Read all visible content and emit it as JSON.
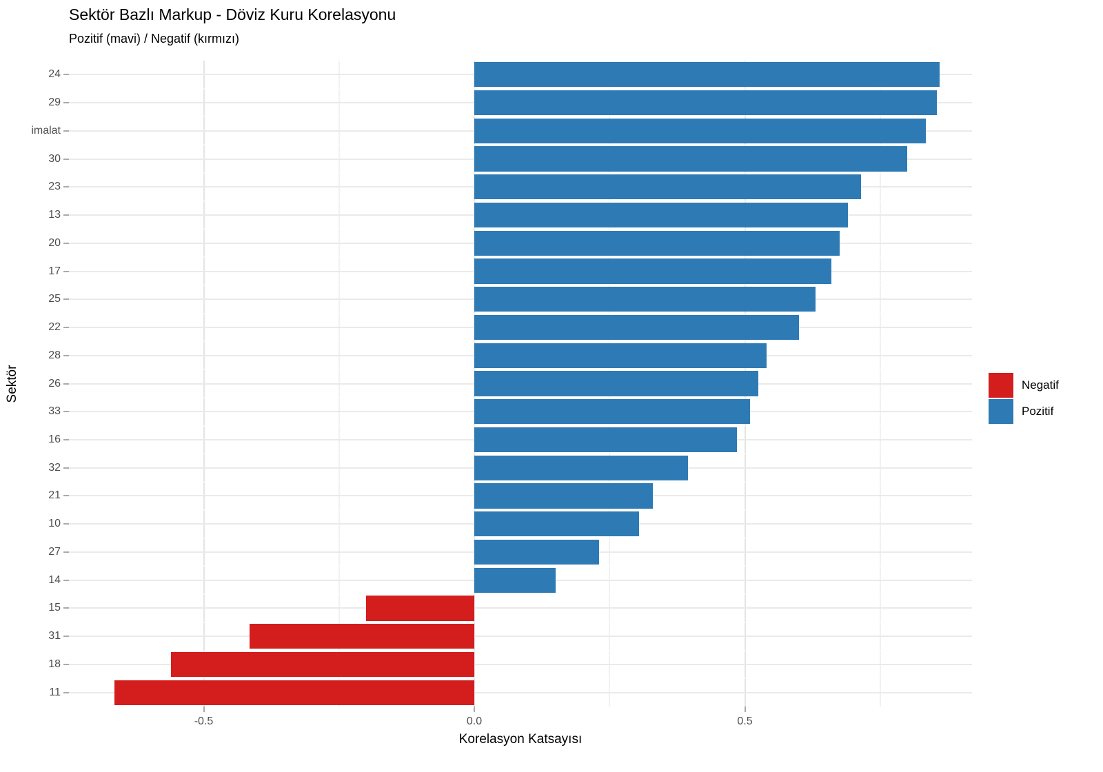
{
  "title": "Sektör Bazlı Markup - Döviz Kuru Korelasyonu",
  "subtitle": "Pozitif (mavi) / Negatif (kırmızı)",
  "chart_data": {
    "type": "bar",
    "orientation": "horizontal",
    "title": "Sektör Bazlı Markup - Döviz Kuru Korelasyonu",
    "subtitle": "Pozitif (mavi) / Negatif (kırmızı)",
    "xlabel": "Korelasyon Katsayısı",
    "ylabel": "Sektör",
    "categories": [
      "24",
      "29",
      "imalat",
      "30",
      "23",
      "13",
      "20",
      "17",
      "25",
      "22",
      "28",
      "26",
      "33",
      "16",
      "32",
      "21",
      "10",
      "27",
      "14",
      "15",
      "31",
      "18",
      "11"
    ],
    "values": [
      0.86,
      0.855,
      0.835,
      0.8,
      0.715,
      0.69,
      0.675,
      0.66,
      0.63,
      0.6,
      0.54,
      0.525,
      0.51,
      0.485,
      0.395,
      0.33,
      0.305,
      0.23,
      0.15,
      -0.2,
      -0.415,
      -0.56,
      -0.665
    ],
    "xlim": [
      -0.745,
      0.92
    ],
    "x_major_ticks": [
      -0.5,
      0.0,
      0.5
    ],
    "x_tick_labels": [
      "-0.5",
      "0.0",
      "0.5"
    ],
    "x_minor_ticks": [
      -0.75,
      -0.25,
      0.25,
      0.75
    ],
    "grid": true,
    "legend_position": "right",
    "legend": {
      "entries": [
        {
          "label": "Negatif",
          "color": "#d41d1d"
        },
        {
          "label": "Pozitif",
          "color": "#2e7ab5"
        }
      ]
    },
    "colors": {
      "positive": "#2e7ab5",
      "negative": "#d41d1d"
    }
  }
}
